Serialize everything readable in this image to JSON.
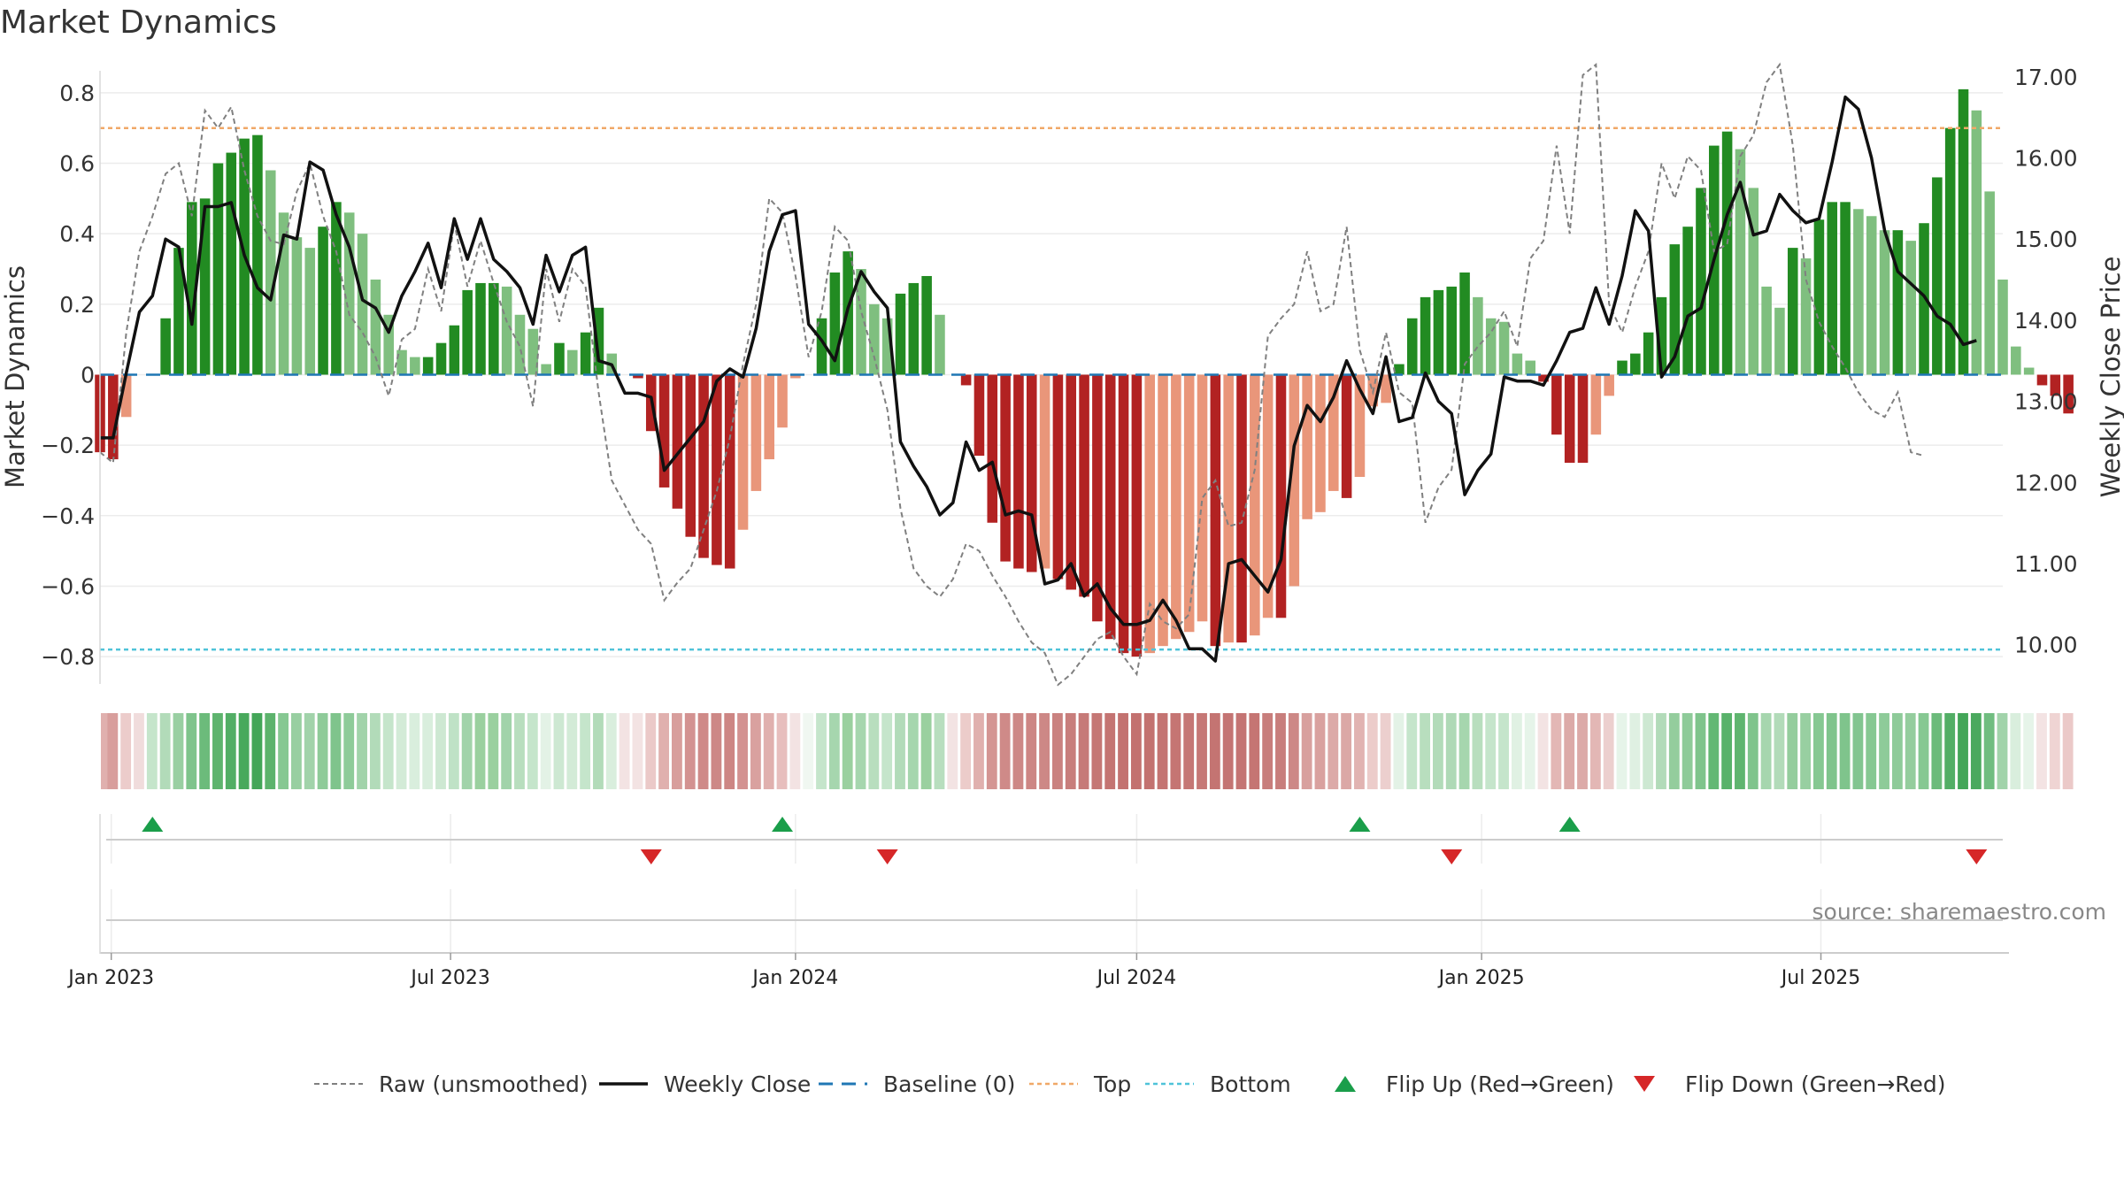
{
  "chart_data": {
    "type": "bar",
    "title": "Market Dynamics",
    "ylabel_left": "Market Dynamics",
    "ylabel_right": "Weekly Close Price",
    "ylim_left": [
      -0.87,
      0.88
    ],
    "ylim_right": [
      9.55,
      17.15
    ],
    "yticks_left": [
      "0.8",
      "0.6",
      "0.4",
      "0.2",
      "0",
      "−0.2",
      "−0.4",
      "−0.6",
      "−0.8"
    ],
    "yticks_left_values": [
      0.8,
      0.6,
      0.4,
      0.2,
      0,
      -0.2,
      -0.4,
      -0.6,
      -0.8
    ],
    "yticks_right": [
      "17.00",
      "16.00",
      "15.00",
      "14.00",
      "13.00",
      "12.00",
      "11.00",
      "10.00"
    ],
    "yticks_right_values": [
      17,
      16,
      15,
      14,
      13,
      12,
      11,
      10
    ],
    "x_start": "2022-12-26",
    "x_end": "2025-10-06",
    "xticks": [
      {
        "date": "2023-01-01",
        "label": "Jan 2023"
      },
      {
        "date": "2023-07-01",
        "label": "Jul 2023"
      },
      {
        "date": "2024-01-01",
        "label": "Jan 2024"
      },
      {
        "date": "2024-07-01",
        "label": "Jul 2024"
      },
      {
        "date": "2025-01-01",
        "label": "Jan 2025"
      },
      {
        "date": "2025-07-01",
        "label": "Jul 2025"
      }
    ],
    "bar_start_date": "2022-12-26",
    "bar_interval_days": 7,
    "bars": [
      -0.22,
      -0.24,
      -0.12,
      0,
      0,
      0.16,
      0.36,
      0.49,
      0.5,
      0.6,
      0.63,
      0.67,
      0.68,
      0.58,
      0.46,
      0.39,
      0.36,
      0.42,
      0.49,
      0.46,
      0.4,
      0.27,
      0.17,
      0.07,
      0.05,
      0.05,
      0.09,
      0.14,
      0.24,
      0.26,
      0.26,
      0.25,
      0.17,
      0.13,
      0.03,
      0.09,
      0.07,
      0.12,
      0.19,
      0.06,
      0,
      -0.01,
      -0.16,
      -0.32,
      -0.38,
      -0.46,
      -0.52,
      -0.54,
      -0.55,
      -0.44,
      -0.33,
      -0.24,
      -0.15,
      -0.01,
      0,
      0.16,
      0.29,
      0.35,
      0.3,
      0.2,
      0.16,
      0.23,
      0.26,
      0.28,
      0.17,
      0,
      -0.03,
      -0.23,
      -0.42,
      -0.53,
      -0.55,
      -0.56,
      -0.55,
      -0.58,
      -0.61,
      -0.63,
      -0.7,
      -0.75,
      -0.79,
      -0.8,
      -0.79,
      -0.77,
      -0.75,
      -0.73,
      -0.7,
      -0.77,
      -0.76,
      -0.76,
      -0.74,
      -0.69,
      -0.69,
      -0.6,
      -0.41,
      -0.39,
      -0.33,
      -0.35,
      -0.29,
      -0.09,
      -0.08,
      0.03,
      0.16,
      0.22,
      0.24,
      0.25,
      0.29,
      0.22,
      0.16,
      0.15,
      0.06,
      0.04,
      -0.02,
      -0.17,
      -0.25,
      -0.25,
      -0.17,
      -0.06,
      0.04,
      0.06,
      0.12,
      0.22,
      0.37,
      0.42,
      0.53,
      0.65,
      0.69,
      0.64,
      0.53,
      0.25,
      0.19,
      0.36,
      0.33,
      0.44,
      0.49,
      0.49,
      0.47,
      0.45,
      0.41,
      0.41,
      0.38,
      0.43,
      0.56,
      0.7,
      0.81,
      0.75,
      0.52,
      0.27,
      0.08,
      0.02,
      -0.03,
      -0.06,
      -0.11
    ],
    "bar_colors": {
      "positive_rising": "#228b22",
      "positive_falling": "#7fbf7f",
      "negative_falling": "#b22222",
      "negative_rising": "#e9967a"
    },
    "weekly_close": [
      12.55,
      12.55,
      13.35,
      14.1,
      14.3,
      15.0,
      14.9,
      13.95,
      15.4,
      15.4,
      15.45,
      14.8,
      14.4,
      14.25,
      15.05,
      15.0,
      15.95,
      15.85,
      15.3,
      14.9,
      14.25,
      14.15,
      13.85,
      14.3,
      14.6,
      14.95,
      14.4,
      15.25,
      14.75,
      15.25,
      14.75,
      14.6,
      14.4,
      13.95,
      14.8,
      14.35,
      14.8,
      14.9,
      13.5,
      13.45,
      13.1,
      13.1,
      13.05,
      12.15,
      12.35,
      12.55,
      12.75,
      13.25,
      13.4,
      13.3,
      13.9,
      14.85,
      15.3,
      15.35,
      13.95,
      13.75,
      13.5,
      14.15,
      14.6,
      14.35,
      14.15,
      12.5,
      12.2,
      11.95,
      11.6,
      11.75,
      12.5,
      12.15,
      12.25,
      11.6,
      11.65,
      11.6,
      10.75,
      10.8,
      11.0,
      10.6,
      10.75,
      10.45,
      10.25,
      10.25,
      10.3,
      10.55,
      10.3,
      9.95,
      9.95,
      9.8,
      11.0,
      11.05,
      10.85,
      10.65,
      11.05,
      12.45,
      12.95,
      12.75,
      13.05,
      13.5,
      13.15,
      12.85,
      13.55,
      12.75,
      12.8,
      13.35,
      13.0,
      12.85,
      11.85,
      12.15,
      12.35,
      13.3,
      13.25,
      13.25,
      13.2,
      13.5,
      13.85,
      13.9,
      14.4,
      13.95,
      14.55,
      15.35,
      15.1,
      13.3,
      13.55,
      14.05,
      14.15,
      14.75,
      15.3,
      15.7,
      15.05,
      15.1,
      15.55,
      15.35,
      15.2,
      15.25,
      15.95,
      16.75,
      16.6,
      16.0,
      15.1,
      14.6,
      14.45,
      14.3,
      14.05,
      13.95,
      13.7,
      13.75
    ],
    "raw_line": [
      -0.22,
      -0.25,
      0.12,
      0.35,
      0.45,
      0.57,
      0.6,
      0.45,
      0.75,
      0.7,
      0.76,
      0.58,
      0.45,
      0.38,
      0.37,
      0.52,
      0.6,
      0.45,
      0.35,
      0.17,
      0.12,
      0.05,
      -0.06,
      0.1,
      0.13,
      0.3,
      0.18,
      0.43,
      0.25,
      0.38,
      0.26,
      0.15,
      0.08,
      -0.09,
      0.3,
      0.15,
      0.3,
      0.25,
      -0.05,
      -0.3,
      -0.37,
      -0.44,
      -0.48,
      -0.64,
      -0.59,
      -0.55,
      -0.44,
      -0.33,
      -0.18,
      0.03,
      0.2,
      0.5,
      0.46,
      0.28,
      0.05,
      0.18,
      0.42,
      0.38,
      0.18,
      0.05,
      -0.1,
      -0.38,
      -0.55,
      -0.6,
      -0.63,
      -0.58,
      -0.48,
      -0.5,
      -0.57,
      -0.63,
      -0.7,
      -0.76,
      -0.79,
      -0.88,
      -0.85,
      -0.8,
      -0.75,
      -0.73,
      -0.8,
      -0.85,
      -0.65,
      -0.7,
      -0.72,
      -0.68,
      -0.35,
      -0.3,
      -0.43,
      -0.42,
      -0.27,
      0.11,
      0.16,
      0.2,
      0.35,
      0.18,
      0.2,
      0.42,
      0.07,
      -0.05,
      0.12,
      -0.05,
      -0.08,
      -0.42,
      -0.32,
      -0.27,
      0.03,
      0.08,
      0.12,
      0.18,
      0.08,
      0.33,
      0.38,
      0.65,
      0.4,
      0.85,
      0.88,
      0.2,
      0.12,
      0.25,
      0.35,
      0.6,
      0.5,
      0.62,
      0.58,
      0.35,
      0.37,
      0.62,
      0.68,
      0.83,
      0.88,
      0.65,
      0.27,
      0.15,
      0.08,
      0.02,
      -0.05,
      -0.1,
      -0.12,
      -0.05,
      -0.22,
      -0.23
    ],
    "top_line": 0.7,
    "bottom_line": -0.78,
    "regime_colors": [
      "#e0b0ae",
      "#d89e9c",
      "#eccccb",
      "#f0dcdc",
      "#c5e5cb",
      "#b2dbb9",
      "#99cfa2",
      "#7fc48c",
      "#6cbb7b",
      "#5eb46e",
      "#52ae65",
      "#48a95c",
      "#43a658",
      "#5cb36c",
      "#86c892",
      "#98cfa1",
      "#a1d3aa",
      "#8ecb99",
      "#7fc48c",
      "#8ecb99",
      "#a1d3aa",
      "#b2dbb9",
      "#c5e5cb",
      "#d3ebd7",
      "#d9eedd",
      "#d9eedd",
      "#cde8d2",
      "#bfe2c6",
      "#a1d3aa",
      "#9ad09f",
      "#9ad09f",
      "#a1d3aa",
      "#b8deBE",
      "#c5e5cb",
      "#e3f2e6",
      "#cde8d2",
      "#d3ebd7",
      "#c5e5cb",
      "#b2dbb9",
      "#d9eedd",
      "#f3e3e3",
      "#f3e3e3",
      "#ebc9c8",
      "#e0b0ae",
      "#d89e9c",
      "#d39291",
      "#cf8a88",
      "#cd8886",
      "#cd8684",
      "#d39291",
      "#d9a19f",
      "#e0b0ae",
      "#e7bebd",
      "#f3e3e3",
      "#f0f7f1",
      "#c5e5cb",
      "#a6d6ae",
      "#9ad09f",
      "#a6d6ae",
      "#b8deBE",
      "#c5e5cb",
      "#b2dbb9",
      "#a6d6ae",
      "#9ad09f",
      "#b8deBE",
      "#f3e3e3",
      "#ecccca",
      "#e0b0ae",
      "#d49593",
      "#cf8a88",
      "#cd8886",
      "#cd8684",
      "#cd8886",
      "#ca8280",
      "#c87e7c",
      "#c67a78",
      "#c57775",
      "#c47472",
      "#c37270",
      "#c3716f",
      "#c37270",
      "#c47472",
      "#c57573",
      "#c57775",
      "#c67876",
      "#c47472",
      "#c47473",
      "#c47473",
      "#c57573",
      "#c87e7c",
      "#c87e7c",
      "#cd8886",
      "#d8a09e",
      "#d9a19f",
      "#dcaaa8",
      "#dba8a6",
      "#e1b3b1",
      "#ecccca",
      "#eccfce",
      "#e3f2e6",
      "#c5e5cb",
      "#b8deBE",
      "#b2dbb9",
      "#afd9b6",
      "#a6d6ae",
      "#b8deBE",
      "#c5e5cb",
      "#c5e5cb",
      "#e0f1e3",
      "#e6f4e9",
      "#f3e3e3",
      "#e3b7b5",
      "#dcaaa8",
      "#dcaaa8",
      "#e3b7b5",
      "#eccfce",
      "#e6f4e9",
      "#dff0e2",
      "#cde8d2",
      "#b2dbb9",
      "#94cd9d",
      "#8ecb99",
      "#7fc48c",
      "#63b874",
      "#58b26a",
      "#5fb56f",
      "#7fc48c",
      "#a6d6ae",
      "#b2dbb9",
      "#94cd9d",
      "#98cfa1",
      "#86c892",
      "#7fc48c",
      "#7fc48c",
      "#82c590",
      "#86c892",
      "#8ecb99",
      "#8ecb99",
      "#94cd9d",
      "#86c892",
      "#6cbb7b",
      "#52ae65",
      "#43a658",
      "#4aa95e",
      "#70bd80",
      "#a1d3aa",
      "#d9eedd",
      "#e6f4e9",
      "#f3e3e3",
      "#efd4d3",
      "#ebc9c8"
    ],
    "flip_up_dates": [
      "2023-01-23",
      "2023-12-25",
      "2024-10-28",
      "2025-02-17"
    ],
    "flip_down_dates": [
      "2023-10-16",
      "2024-02-19",
      "2024-12-16",
      "2025-09-22"
    ],
    "flip_up_color": "#1a9e4a",
    "flip_down_color": "#d62728",
    "line_colors": {
      "raw": "#808080",
      "weekly_close": "#111111",
      "baseline": "#1f77b4",
      "top": "#f0a868",
      "bottom": "#4fc3d9"
    },
    "legend": [
      {
        "label": "Raw (unsmoothed)",
        "kind": "raw"
      },
      {
        "label": "Weekly Close",
        "kind": "close"
      },
      {
        "label": "Baseline (0)",
        "kind": "baseline"
      },
      {
        "label": "Top",
        "kind": "top"
      },
      {
        "label": "Bottom",
        "kind": "bottom"
      },
      {
        "label": "Flip Up (Red→Green)",
        "kind": "up"
      },
      {
        "label": "Flip Down (Green→Red)",
        "kind": "down"
      }
    ],
    "legend_position": "bottom-center",
    "source": "source: sharemaestro.com"
  }
}
